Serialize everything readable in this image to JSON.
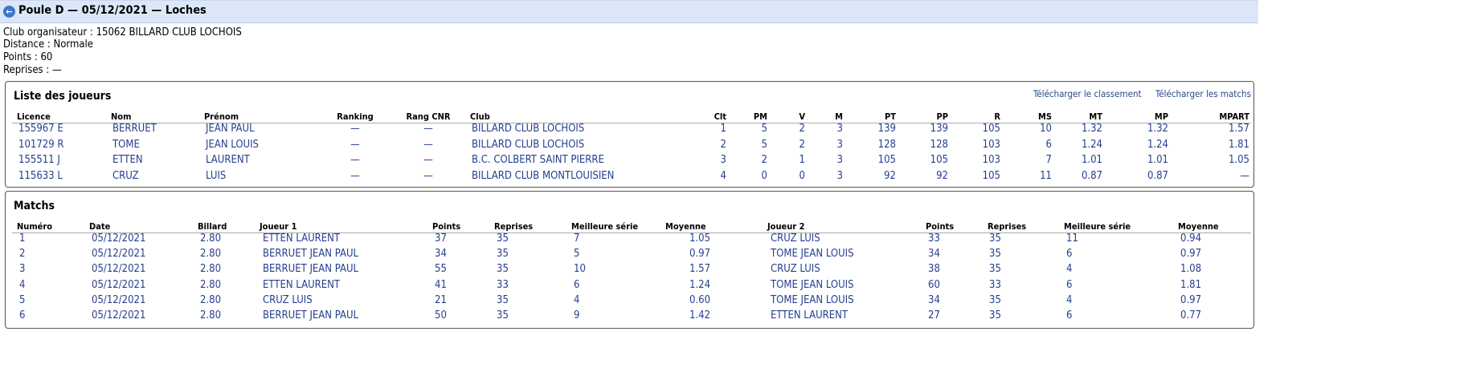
{
  "header": {
    "title": "Poule D — 05/12/2021 — Loches",
    "back_icon": "arrow-left-circle-icon"
  },
  "info": [
    "Club organisateur : 15062 BILLARD CLUB LOCHOIS",
    "Distance : Normale",
    "Points : 60",
    "Reprises : —"
  ],
  "players": {
    "title": "Liste des joueurs",
    "links": [
      "Télécharger le classement",
      "Télécharger les matchs"
    ],
    "columns": [
      "Licence",
      "Nom",
      "Prénom",
      "Ranking",
      "Rang CNR",
      "Club",
      "Clt",
      "PM",
      "V",
      "M",
      "PT",
      "PP",
      "R",
      "MS",
      "MT",
      "MP",
      "MPART"
    ],
    "rows": [
      [
        "155967 E",
        "BERRUET",
        "JEAN PAUL",
        "—",
        "—",
        "BILLARD CLUB LOCHOIS",
        "1",
        "5",
        "2",
        "3",
        "139",
        "139",
        "105",
        "10",
        "1.32",
        "1.32",
        "1.57"
      ],
      [
        "101729 R",
        "TOME",
        "JEAN LOUIS",
        "—",
        "—",
        "BILLARD CLUB LOCHOIS",
        "2",
        "5",
        "2",
        "3",
        "128",
        "128",
        "103",
        "6",
        "1.24",
        "1.24",
        "1.81"
      ],
      [
        "155511 J",
        "ETTEN",
        "LAURENT",
        "—",
        "—",
        "B.C. COLBERT SAINT PIERRE",
        "3",
        "2",
        "1",
        "3",
        "105",
        "105",
        "103",
        "7",
        "1.01",
        "1.01",
        "1.05"
      ],
      [
        "115633 L",
        "CRUZ",
        "LUIS",
        "—",
        "—",
        "BILLARD CLUB MONTLOUISIEN",
        "4",
        "0",
        "0",
        "3",
        "92",
        "92",
        "105",
        "11",
        "0.87",
        "0.87",
        "—"
      ]
    ]
  },
  "matches": {
    "title": "Matchs",
    "columns": [
      "Numéro",
      "Date",
      "Billard",
      "Joueur 1",
      "Points",
      "Reprises",
      "Meilleure série",
      "Moyenne",
      "Joueur 2",
      "Points",
      "Reprises",
      "Meilleure série",
      "Moyenne"
    ],
    "rows": [
      [
        "1",
        "05/12/2021",
        "2.80",
        "ETTEN LAURENT",
        "37",
        "35",
        "7",
        "1.05",
        "CRUZ LUIS",
        "33",
        "35",
        "11",
        "0.94"
      ],
      [
        "2",
        "05/12/2021",
        "2.80",
        "BERRUET JEAN PAUL",
        "34",
        "35",
        "5",
        "0.97",
        "TOME JEAN LOUIS",
        "34",
        "35",
        "6",
        "0.97"
      ],
      [
        "3",
        "05/12/2021",
        "2.80",
        "BERRUET JEAN PAUL",
        "55",
        "35",
        "10",
        "1.57",
        "CRUZ LUIS",
        "38",
        "35",
        "4",
        "1.08"
      ],
      [
        "4",
        "05/12/2021",
        "2.80",
        "ETTEN LAURENT",
        "41",
        "33",
        "6",
        "1.24",
        "TOME JEAN LOUIS",
        "60",
        "33",
        "6",
        "1.81"
      ],
      [
        "5",
        "05/12/2021",
        "2.80",
        "CRUZ LUIS",
        "21",
        "35",
        "4",
        "0.60",
        "TOME JEAN LOUIS",
        "34",
        "35",
        "4",
        "0.97"
      ],
      [
        "6",
        "05/12/2021",
        "2.80",
        "BERRUET JEAN PAUL",
        "50",
        "35",
        "9",
        "1.42",
        "ETTEN LAURENT",
        "27",
        "35",
        "6",
        "0.77"
      ]
    ]
  }
}
